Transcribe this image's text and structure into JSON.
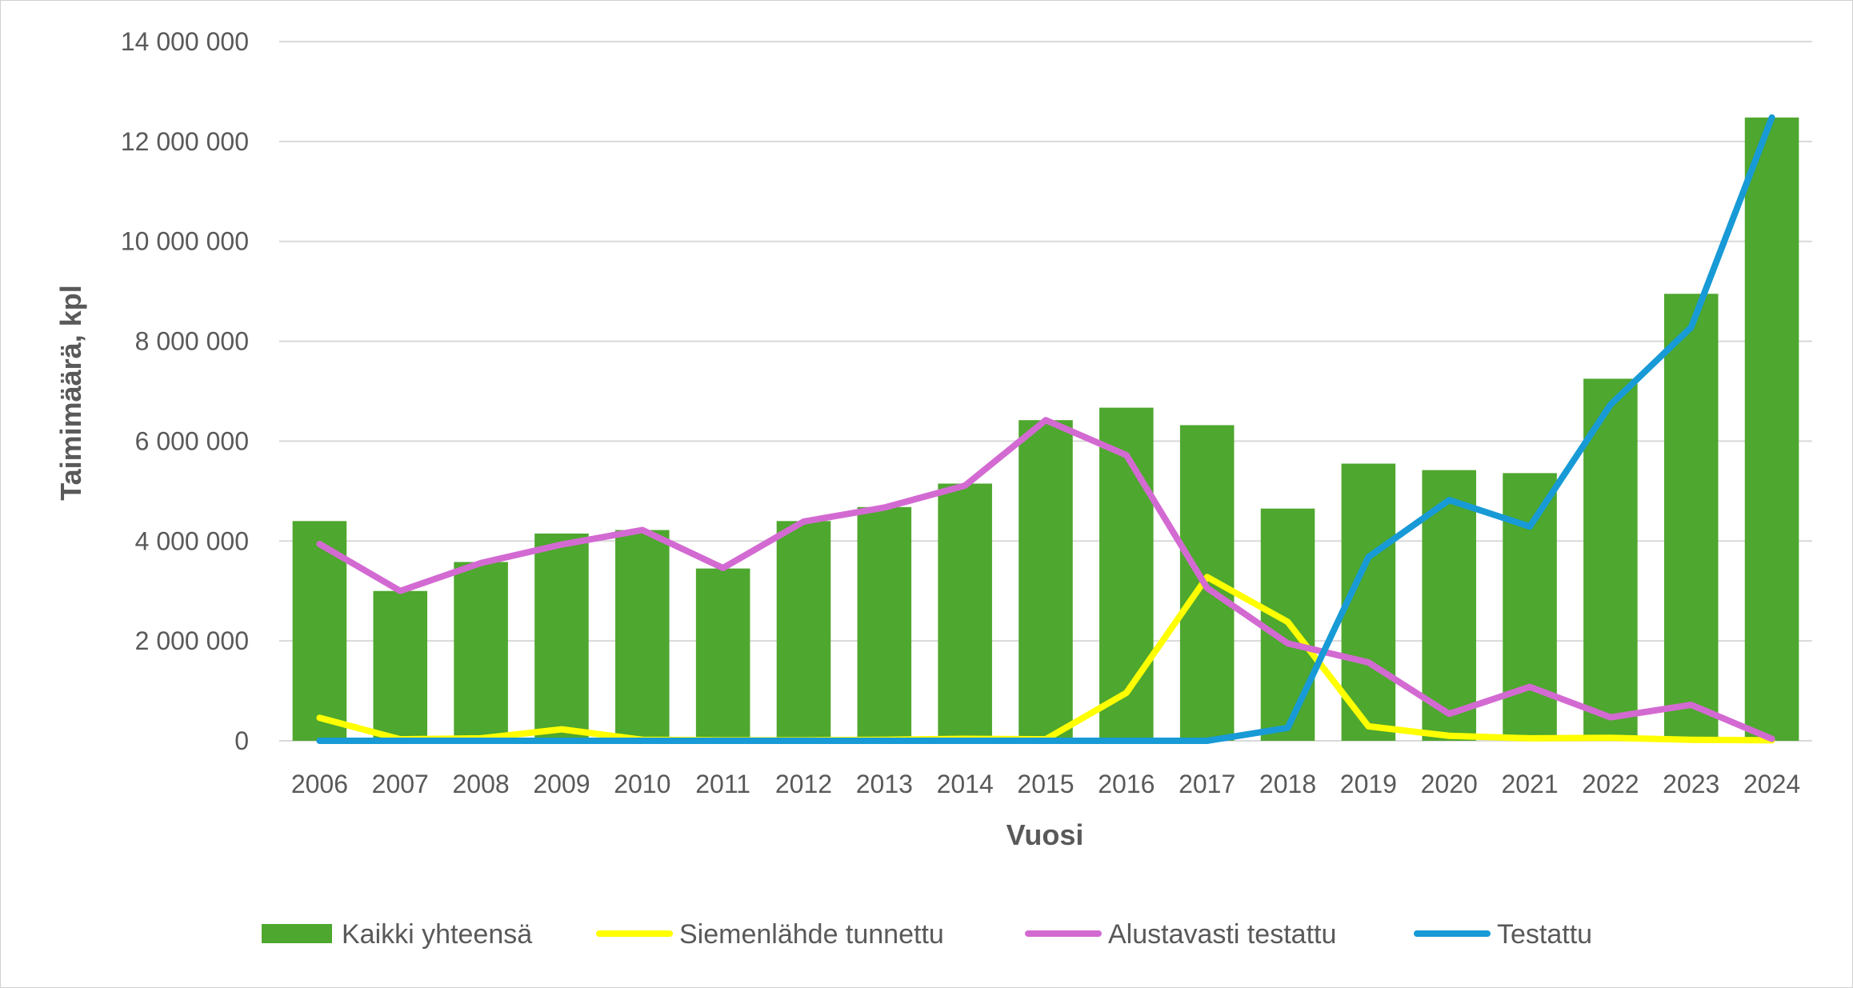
{
  "chart_data": {
    "type": "bar",
    "title": "",
    "xlabel": "Vuosi",
    "ylabel": "Taimimäärä, kpl",
    "ylim": [
      0,
      14000000
    ],
    "yticks": [
      0,
      2000000,
      4000000,
      6000000,
      8000000,
      10000000,
      12000000,
      14000000
    ],
    "ytick_labels": [
      "0",
      "2 000 000",
      "4 000 000",
      "6 000 000",
      "8 000 000",
      "10 000 000",
      "12 000 000",
      "14 000 000"
    ],
    "grid": true,
    "legend_position": "bottom",
    "categories": [
      "2006",
      "2007",
      "2008",
      "2009",
      "2010",
      "2011",
      "2012",
      "2013",
      "2014",
      "2015",
      "2016",
      "2017",
      "2018",
      "2019",
      "2020",
      "2021",
      "2022",
      "2023",
      "2024"
    ],
    "series": [
      {
        "name": "Kaikki yhteensä",
        "type": "bar",
        "color": "#4ea72e",
        "values": [
          4400000,
          3000000,
          3580000,
          4150000,
          4220000,
          3450000,
          4400000,
          4680000,
          5150000,
          6420000,
          6670000,
          6320000,
          4650000,
          5550000,
          5420000,
          5360000,
          7250000,
          8950000,
          12480000
        ]
      },
      {
        "name": "Siemenlähde tunnettu",
        "type": "line",
        "color": "#ffff00",
        "values": [
          460000,
          30000,
          50000,
          230000,
          20000,
          10000,
          10000,
          20000,
          40000,
          30000,
          960000,
          3280000,
          2380000,
          290000,
          100000,
          50000,
          60000,
          20000,
          10000
        ]
      },
      {
        "name": "Alustavasti testattu",
        "type": "line",
        "color": "#d36ad2",
        "values": [
          3940000,
          3000000,
          3560000,
          3930000,
          4220000,
          3460000,
          4390000,
          4670000,
          5110000,
          6420000,
          5720000,
          3060000,
          1950000,
          1570000,
          540000,
          1080000,
          470000,
          720000,
          40000
        ]
      },
      {
        "name": "Testattu",
        "type": "line",
        "color": "#179ad6",
        "values": [
          0,
          0,
          0,
          0,
          0,
          0,
          0,
          0,
          0,
          0,
          0,
          0,
          260000,
          3680000,
          4820000,
          4290000,
          6730000,
          8280000,
          12480000
        ]
      }
    ]
  }
}
